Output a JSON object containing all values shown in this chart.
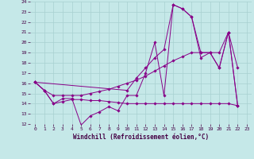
{
  "background_color": "#c5e8e8",
  "grid_color": "#a8d0d0",
  "line_color": "#880088",
  "xlabel": "Windchill (Refroidissement éolien,°C)",
  "xlim_min": -0.5,
  "xlim_max": 23.5,
  "ylim_min": 12,
  "ylim_max": 24,
  "x_ticks": [
    0,
    1,
    2,
    3,
    4,
    5,
    6,
    7,
    8,
    9,
    10,
    11,
    12,
    13,
    14,
    15,
    16,
    17,
    18,
    19,
    20,
    21,
    22,
    23
  ],
  "y_ticks": [
    12,
    13,
    14,
    15,
    16,
    17,
    18,
    19,
    20,
    21,
    22,
    23,
    24
  ],
  "line1_x": [
    0,
    1,
    2,
    3,
    4,
    5,
    6,
    7,
    8,
    9,
    10,
    11,
    12,
    13,
    14,
    15,
    16,
    17,
    18,
    19,
    20,
    21,
    22
  ],
  "line1_y": [
    16.1,
    15.3,
    14.0,
    14.5,
    14.5,
    11.9,
    12.8,
    13.2,
    13.7,
    13.3,
    14.8,
    14.8,
    17.0,
    20.0,
    14.8,
    23.7,
    23.3,
    22.5,
    19.0,
    19.0,
    17.5,
    21.0,
    13.8
  ],
  "line2_x": [
    0,
    1,
    2,
    3,
    4,
    5,
    6,
    7,
    8,
    9,
    10,
    11,
    12,
    13,
    14,
    15,
    16,
    17,
    18,
    19,
    20,
    21,
    22
  ],
  "line2_y": [
    16.1,
    15.3,
    14.0,
    14.2,
    14.4,
    14.4,
    14.3,
    14.3,
    14.2,
    14.1,
    14.0,
    14.0,
    14.0,
    14.0,
    14.0,
    14.0,
    14.0,
    14.0,
    14.0,
    14.0,
    14.0,
    14.0,
    13.8
  ],
  "line3_x": [
    0,
    1,
    2,
    3,
    4,
    5,
    6,
    7,
    8,
    9,
    10,
    11,
    12,
    13,
    14,
    15,
    16,
    17,
    18,
    19,
    20,
    21,
    22
  ],
  "line3_y": [
    16.1,
    15.3,
    14.8,
    14.8,
    14.8,
    14.8,
    15.0,
    15.2,
    15.4,
    15.7,
    16.0,
    16.3,
    16.7,
    17.2,
    17.7,
    18.2,
    18.6,
    19.0,
    19.0,
    19.0,
    19.0,
    21.0,
    17.5
  ],
  "line4_x": [
    0,
    10,
    11,
    12,
    13,
    14,
    15,
    16,
    17,
    18,
    19,
    20,
    21,
    22
  ],
  "line4_y": [
    16.1,
    15.3,
    16.5,
    17.5,
    18.5,
    19.3,
    23.7,
    23.3,
    22.5,
    18.5,
    19.0,
    17.5,
    21.0,
    13.8
  ]
}
